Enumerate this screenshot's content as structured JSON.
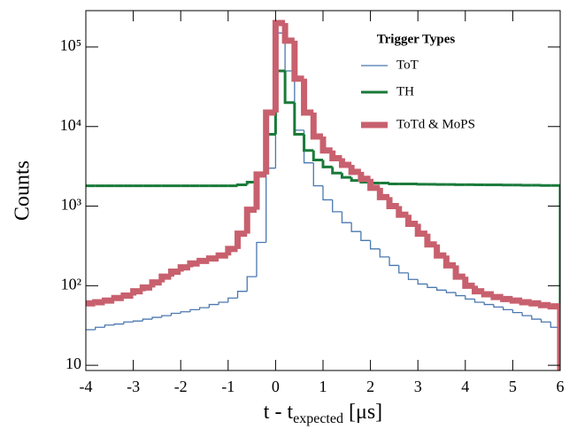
{
  "chart_data": {
    "type": "histogram",
    "y_label": "Counts",
    "x_label": [
      "t - t",
      "expected",
      " [μs]"
    ],
    "legend_title": "Trigger Types",
    "legend": "upper right",
    "log_y": true,
    "bins": [
      -4,
      -3.8,
      -3.6,
      -3.4,
      -3.2,
      -3,
      -2.8,
      -2.6,
      -2.4,
      -2.2,
      -2,
      -1.8,
      -1.6,
      -1.4,
      -1.2,
      -1,
      -0.8,
      -0.6,
      -0.4,
      -0.2,
      0,
      0.2,
      0.4,
      0.6,
      0.8,
      1,
      1.2,
      1.4,
      1.6,
      1.8,
      2,
      2.2,
      2.4,
      2.6,
      2.8,
      3,
      3.2,
      3.4,
      3.6,
      3.8,
      4,
      4.2,
      4.4,
      4.6,
      4.8,
      5,
      5.2,
      5.4,
      5.6,
      5.8,
      6
    ],
    "series": [
      {
        "name": "ToT",
        "color": "#4a78b0",
        "line_width": 1.3,
        "values": [
          28,
          30,
          32,
          33,
          35,
          36,
          38,
          40,
          42,
          45,
          47,
          50,
          53,
          58,
          62,
          70,
          85,
          130,
          350,
          3000,
          150000,
          50000,
          9000,
          3500,
          1800,
          1200,
          850,
          620,
          480,
          370,
          290,
          230,
          180,
          145,
          120,
          105,
          95,
          88,
          82,
          75,
          68,
          62,
          58,
          54,
          50,
          46,
          42,
          38,
          35,
          30
        ]
      },
      {
        "name": "TH",
        "color": "#1a7a3a",
        "line_width": 3,
        "values": [
          1800,
          1800,
          1800,
          1800,
          1800,
          1800,
          1800,
          1800,
          1800,
          1800,
          1800,
          1800,
          1800,
          1800,
          1800,
          1800,
          1850,
          2000,
          2600,
          8000,
          50000,
          20000,
          8000,
          5000,
          3800,
          3100,
          2600,
          2300,
          2100,
          2000,
          1950,
          1950,
          1900,
          1900,
          1900,
          1880,
          1880,
          1870,
          1870,
          1860,
          1860,
          1850,
          1850,
          1850,
          1840,
          1840,
          1830,
          1830,
          1820,
          1820
        ]
      },
      {
        "name": "ToTd & MoPS",
        "color": "#c8606e",
        "line_width": 7,
        "values": [
          60,
          62,
          65,
          70,
          75,
          85,
          95,
          110,
          130,
          150,
          170,
          190,
          205,
          220,
          240,
          290,
          450,
          900,
          2500,
          15000,
          200000,
          120000,
          40000,
          15000,
          7500,
          5000,
          4000,
          3300,
          2700,
          2200,
          1700,
          1300,
          1000,
          780,
          600,
          450,
          330,
          240,
          180,
          130,
          100,
          85,
          78,
          72,
          68,
          65,
          62,
          60,
          57,
          55
        ]
      }
    ],
    "xlim": [
      -4,
      6
    ],
    "xticks": [
      -4,
      -3,
      -2,
      -1,
      0,
      1,
      2,
      3,
      4,
      5,
      6
    ],
    "ylim": [
      8.6,
      286000
    ],
    "yticks": [
      10,
      {
        "value": 100,
        "label": "10²"
      },
      {
        "value": 1000,
        "label": "10³"
      },
      {
        "value": 10000,
        "label": "10⁴"
      },
      {
        "value": 100000,
        "label": "10⁵"
      }
    ]
  }
}
